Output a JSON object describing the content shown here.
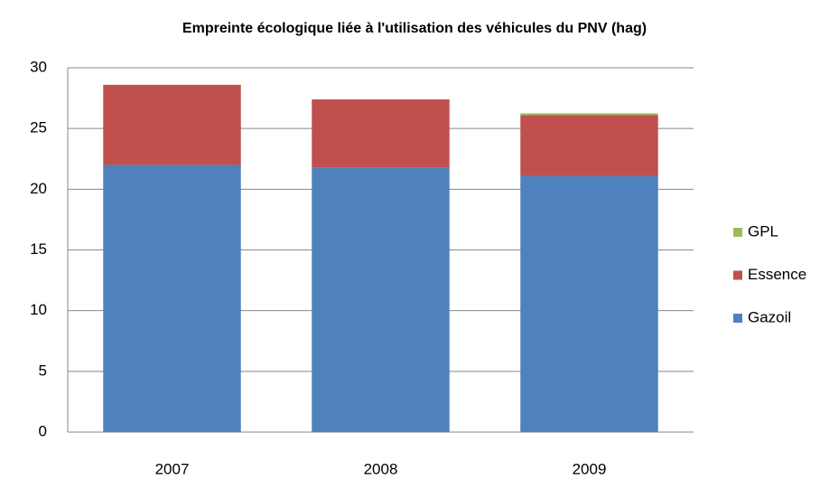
{
  "chart_data": {
    "type": "stacked_bar",
    "title": "Empreinte écologique liée à l'utilisation des véhicules du PNV (hag)",
    "categories": [
      "2007",
      "2008",
      "2009"
    ],
    "series": [
      {
        "name": "Gazoil",
        "color": "#4f81bd",
        "values": [
          22.0,
          21.8,
          21.1
        ]
      },
      {
        "name": "Essence",
        "color": "#c0504d",
        "values": [
          6.6,
          5.6,
          5.0
        ]
      },
      {
        "name": "GPL",
        "color": "#9bbb59",
        "values": [
          0,
          0,
          0.15
        ]
      }
    ],
    "ylim": [
      0,
      30
    ],
    "yticks": [
      0,
      5,
      10,
      15,
      20,
      25,
      30
    ],
    "grid": true,
    "legend": "right"
  }
}
